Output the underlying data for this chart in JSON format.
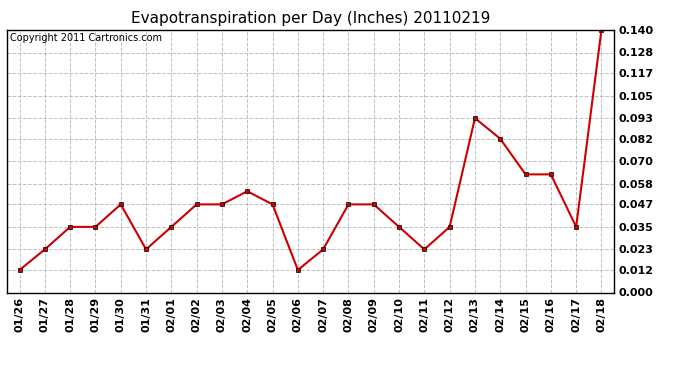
{
  "title": "Evapotranspiration per Day (Inches) 20110219",
  "copyright": "Copyright 2011 Cartronics.com",
  "dates": [
    "01/26",
    "01/27",
    "01/28",
    "01/29",
    "01/30",
    "01/31",
    "02/01",
    "02/02",
    "02/03",
    "02/04",
    "02/05",
    "02/06",
    "02/07",
    "02/08",
    "02/09",
    "02/10",
    "02/11",
    "02/12",
    "02/13",
    "02/14",
    "02/15",
    "02/16",
    "02/17",
    "02/18"
  ],
  "values": [
    0.012,
    0.023,
    0.035,
    0.035,
    0.047,
    0.023,
    0.035,
    0.047,
    0.047,
    0.054,
    0.047,
    0.012,
    0.023,
    0.047,
    0.047,
    0.035,
    0.023,
    0.035,
    0.093,
    0.082,
    0.063,
    0.063,
    0.035,
    0.14
  ],
  "ylim": [
    0.0,
    0.14
  ],
  "yticks": [
    0.0,
    0.012,
    0.023,
    0.035,
    0.047,
    0.058,
    0.07,
    0.082,
    0.093,
    0.105,
    0.117,
    0.128,
    0.14
  ],
  "line_color": "#cc0000",
  "marker": "s",
  "marker_size": 3,
  "bg_color": "#ffffff",
  "grid_color": "#b0b0b0",
  "title_fontsize": 11,
  "copyright_fontsize": 7,
  "tick_fontsize": 8,
  "tick_fontweight": "bold"
}
